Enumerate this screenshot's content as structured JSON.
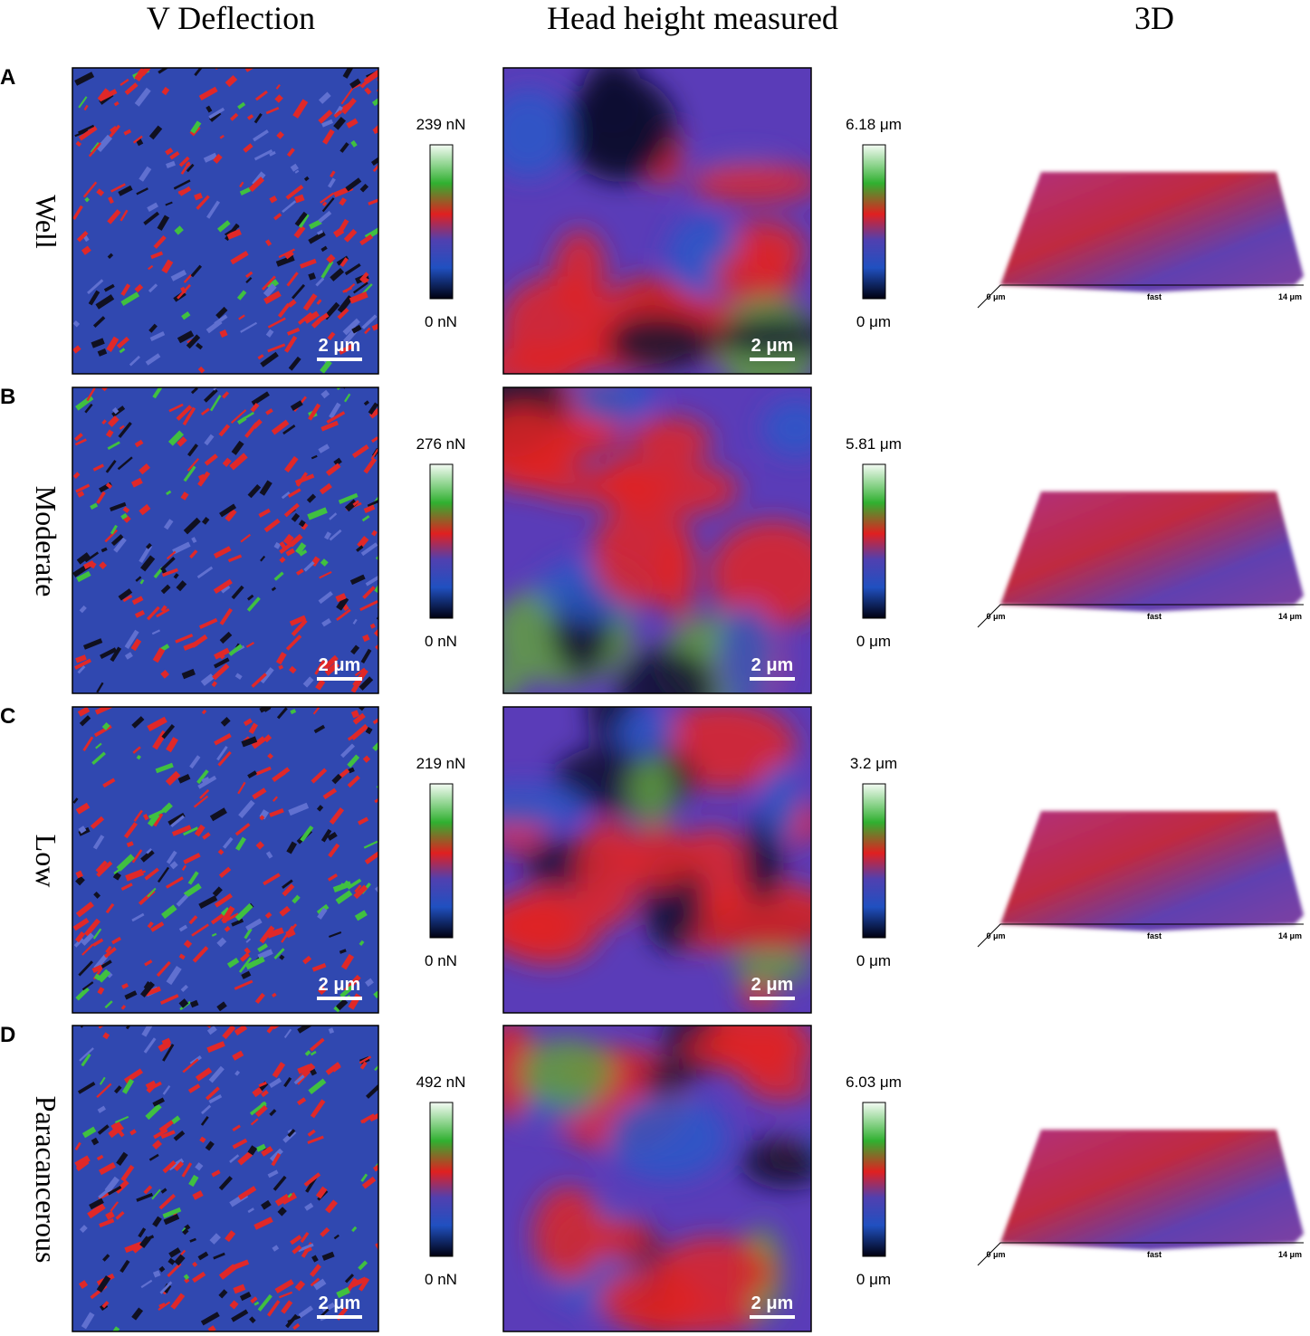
{
  "headers": [
    "V Deflection",
    "Head height measured",
    "3D"
  ],
  "rows": [
    {
      "letter": "A",
      "name": "Well",
      "deflection_max": "239 nN",
      "deflection_min": "0 nN",
      "height_max": "6.18 μm",
      "height_min": "0 μm",
      "scale_bar": "2 μm",
      "axis": [
        "0 μm",
        "fast",
        "14 μm"
      ]
    },
    {
      "letter": "B",
      "name": "Moderate",
      "deflection_max": "276 nN",
      "deflection_min": "0 nN",
      "height_max": "5.81 μm",
      "height_min": "0 μm",
      "scale_bar": "2 μm",
      "axis": [
        "0 μm",
        "fast",
        "14 μm"
      ]
    },
    {
      "letter": "C",
      "name": "Low",
      "deflection_max": "219 nN",
      "deflection_min": "0 nN",
      "height_max": "3.2 μm",
      "height_min": "0 μm",
      "scale_bar": "2 μm",
      "axis": [
        "0 μm",
        "fast",
        "14 μm"
      ]
    },
    {
      "letter": "D",
      "name": "Paracancerous",
      "deflection_max": "492 nN",
      "deflection_min": "0 nN",
      "height_max": "6.03 μm",
      "height_min": "0 μm",
      "scale_bar": "2 μm",
      "axis": [
        "0 μm",
        "fast",
        "14 μm"
      ]
    }
  ]
}
